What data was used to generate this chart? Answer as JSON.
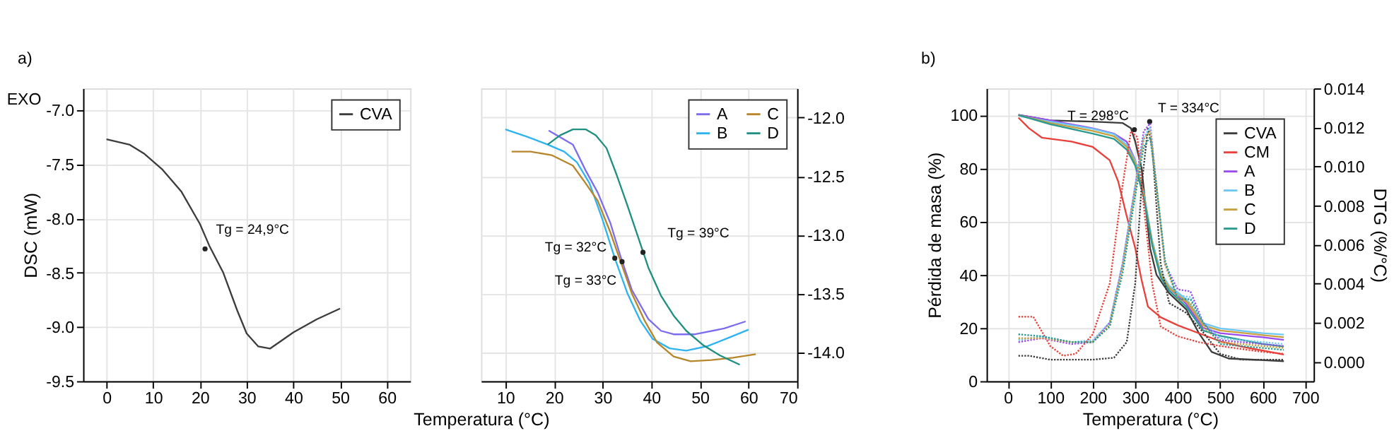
{
  "chart_data": [
    {
      "type": "line",
      "ylabel": "DSC (mW)",
      "xlim": [
        -5,
        65
      ],
      "ylim": [
        -9.5,
        -6.8
      ],
      "xticks": [
        0,
        10,
        20,
        30,
        40,
        50,
        60
      ],
      "yticks": [
        {
          "value": -9.5,
          "label": "-9.5"
        },
        {
          "value": -9.0,
          "label": "-9.0"
        },
        {
          "value": -8.5,
          "label": "-8.5"
        },
        {
          "value": -8.0,
          "label": "-8.0"
        },
        {
          "value": -7.5,
          "label": "-7.5"
        },
        {
          "value": -7.0,
          "label": "-7.0"
        }
      ],
      "grid": true,
      "legend": "top right",
      "line_style": "solid",
      "annotations": [
        "a)",
        "EXO",
        {
          "text": "Tg = 24,9°C",
          "x": 21.1,
          "y": -8.28
        }
      ],
      "series": [
        {
          "name": "CVA",
          "color": "#3c3c3c",
          "x": [
            0,
            5,
            8,
            12,
            16,
            20,
            22,
            25,
            28,
            30,
            32.5,
            35,
            40,
            45,
            50
          ],
          "values": [
            -7.27,
            -7.32,
            -7.4,
            -7.55,
            -7.75,
            -8.05,
            -8.25,
            -8.5,
            -8.85,
            -9.06,
            -9.18,
            -9.2,
            -9.05,
            -8.93,
            -8.83
          ]
        }
      ]
    },
    {
      "type": "line",
      "xlabel": "Temperatura (°C)",
      "xlim": [
        5,
        70
      ],
      "ylim": [
        -14.25,
        -11.75
      ],
      "xticks": [
        10,
        20,
        30,
        40,
        50,
        60,
        70
      ],
      "yticks": [
        {
          "value": -14.0,
          "label": "-14.0"
        },
        {
          "value": -13.5,
          "label": "-13.5"
        },
        {
          "value": -13.0,
          "label": "-13.0"
        },
        {
          "value": -12.5,
          "label": "-12.5"
        },
        {
          "value": -12.0,
          "label": "-12.0"
        }
      ],
      "grid": true,
      "legend": "top right",
      "line_style": "solid",
      "annotations": [
        {
          "text": "Tg = 32°C",
          "x": 32.5,
          "y": -13.2
        },
        {
          "text": "Tg = 33°C",
          "x": 34,
          "y": -13.23
        },
        {
          "text": "Tg = 39°C",
          "x": 38.3,
          "y": -13.15
        }
      ],
      "series": [
        {
          "name": "A",
          "color": "#7b6cf0",
          "x": [
            18.9,
            23.9,
            26.5,
            29,
            31.6,
            33.8,
            36,
            39.4,
            42,
            44.6,
            49,
            55,
            59.4
          ],
          "values": [
            -12.11,
            -12.23,
            -12.45,
            -12.64,
            -12.9,
            -13.2,
            -13.47,
            -13.72,
            -13.82,
            -13.85,
            -13.85,
            -13.8,
            -13.74
          ]
        },
        {
          "name": "B",
          "color": "#2db4f0",
          "x": [
            10,
            14.3,
            18.7,
            22.1,
            24.7,
            27.3,
            29.9,
            32.5,
            35.1,
            37.7,
            40.3,
            43.8,
            47.2,
            51.6,
            55.9,
            60
          ],
          "values": [
            -12.1,
            -12.16,
            -12.23,
            -12.29,
            -12.38,
            -12.56,
            -12.86,
            -13.2,
            -13.5,
            -13.73,
            -13.89,
            -13.97,
            -13.99,
            -13.95,
            -13.88,
            -13.81
          ]
        },
        {
          "name": "C",
          "color": "#b8862a",
          "x": [
            11.3,
            15.2,
            19.5,
            23.9,
            26.5,
            29,
            31.6,
            33.8,
            36,
            38.6,
            41.2,
            44.6,
            48.1,
            52.4,
            56.8,
            61.5
          ],
          "values": [
            -12.29,
            -12.29,
            -12.32,
            -12.41,
            -12.56,
            -12.71,
            -12.98,
            -13.24,
            -13.5,
            -13.73,
            -13.92,
            -14.04,
            -14.08,
            -14.07,
            -14.05,
            -14.02
          ]
        },
        {
          "name": "D",
          "color": "#1f8f80",
          "x": [
            18.7,
            21.3,
            23.9,
            26.5,
            28.6,
            30.8,
            32.9,
            35.1,
            37.3,
            39.4,
            42,
            44.6,
            47.2,
            50.6,
            54.1,
            58.2
          ],
          "values": [
            -12.23,
            -12.15,
            -12.1,
            -12.1,
            -12.15,
            -12.26,
            -12.49,
            -12.75,
            -13.02,
            -13.28,
            -13.52,
            -13.69,
            -13.82,
            -13.94,
            -14.03,
            -14.11
          ]
        }
      ]
    },
    {
      "type": "line",
      "xlabel": "Temperatura (°C)",
      "ylabel": "Pérdida de masa (%)",
      "y2label": "DTG (%/°C)",
      "xlim": [
        -50,
        720
      ],
      "ylim": [
        0,
        110
      ],
      "y2lim": [
        -0.001,
        0.014
      ],
      "xticks": [
        0,
        100,
        200,
        300,
        400,
        500,
        600,
        700
      ],
      "yticks": [
        0,
        20,
        40,
        60,
        80,
        100
      ],
      "y2ticks": [
        {
          "value": 0,
          "label": "0.000"
        },
        {
          "value": 0.002,
          "label": "0.002"
        },
        {
          "value": 0.004,
          "label": "0.004"
        },
        {
          "value": 0.006,
          "label": "0.006"
        },
        {
          "value": 0.008,
          "label": "0.008"
        },
        {
          "value": 0.01,
          "label": "0.010"
        },
        {
          "value": 0.012,
          "label": "0.012"
        },
        {
          "value": 0.014,
          "label": "0.014"
        }
      ],
      "grid": true,
      "legend": "top right",
      "annotations": [
        "b)",
        {
          "text": "T = 298°C",
          "x": 298,
          "y": 94.5
        },
        {
          "text": "T = 334°C",
          "x": 334,
          "y": 97.5
        }
      ],
      "series": [
        {
          "name": "CVA",
          "color": "#3c3c3c",
          "line_style": "solid",
          "x": [
            25,
            100,
            200,
            270,
            290,
            300,
            315,
            325,
            335,
            350,
            380,
            420,
            450,
            480,
            520,
            650
          ],
          "values": [
            100,
            98,
            97.5,
            97,
            95,
            90,
            80,
            65,
            50,
            40,
            33,
            27,
            18,
            11,
            8.5,
            7.5
          ]
        },
        {
          "name": "CM",
          "color": "#e8403a",
          "line_style": "solid",
          "x": [
            25,
            50,
            80,
            150,
            200,
            240,
            260,
            280,
            300,
            315,
            330,
            360,
            400,
            450,
            500,
            550,
            600,
            650
          ],
          "values": [
            99,
            95,
            91.5,
            90,
            88,
            83,
            75,
            62,
            50,
            38,
            28,
            24,
            21,
            18,
            15,
            13,
            11.5,
            10
          ]
        },
        {
          "name": "A",
          "color": "#9a4cf0",
          "line_style": "solid",
          "x": [
            25,
            100,
            200,
            250,
            280,
            300,
            320,
            340,
            360,
            380,
            420,
            460,
            500,
            600,
            650
          ],
          "values": [
            100,
            98,
            95,
            93,
            90,
            83,
            70,
            52,
            40,
            35,
            29,
            20,
            18,
            16.5,
            15.5
          ]
        },
        {
          "name": "B",
          "color": "#6cc8f5",
          "line_style": "solid",
          "x": [
            30,
            100,
            200,
            250,
            280,
            300,
            320,
            340,
            360,
            380,
            420,
            460,
            500,
            600,
            650
          ],
          "values": [
            99.5,
            97.5,
            94.8,
            92.8,
            88.8,
            82.8,
            70.8,
            52.8,
            40.8,
            35.8,
            30.8,
            21.8,
            19.8,
            18,
            17.5
          ]
        },
        {
          "name": "C",
          "color": "#c8a040",
          "line_style": "solid",
          "x": [
            25,
            100,
            200,
            250,
            280,
            300,
            320,
            340,
            360,
            380,
            420,
            460,
            500,
            600,
            650
          ],
          "values": [
            100,
            97,
            94,
            92,
            88,
            82,
            70,
            52,
            40,
            35,
            30,
            21,
            19,
            17.3,
            16.5
          ]
        },
        {
          "name": "D",
          "color": "#2a9a90",
          "line_style": "solid",
          "x": [
            25,
            100,
            200,
            250,
            280,
            300,
            320,
            340,
            360,
            380,
            420,
            460,
            500,
            600,
            650
          ],
          "values": [
            100,
            96.5,
            93,
            91,
            87,
            81,
            69,
            51,
            39,
            34,
            28,
            19,
            17,
            14,
            13
          ]
        },
        {
          "color": "#3c3c3c",
          "line_style": "dotted",
          "axis": "y2",
          "x": [
            25,
            50,
            100,
            200,
            250,
            280,
            300,
            315,
            330,
            340,
            360,
            380,
            420,
            460,
            500,
            550,
            650
          ],
          "values": [
            0.0003,
            0.0003,
            0.0001,
            0.0001,
            0.0002,
            0.001,
            0.004,
            0.009,
            0.012,
            0.011,
            0.005,
            0.003,
            0.0025,
            0.0015,
            0.0004,
            0.0001,
            0.0001
          ]
        },
        {
          "color": "#e8403a",
          "line_style": "dotted",
          "axis": "y2",
          "x": [
            25,
            60,
            100,
            130,
            160,
            200,
            240,
            270,
            290,
            305,
            320,
            340,
            360,
            400,
            450,
            500,
            600,
            650
          ],
          "values": [
            0.0023,
            0.0023,
            0.0008,
            0.0003,
            0.0004,
            0.0014,
            0.004,
            0.009,
            0.0118,
            0.0115,
            0.008,
            0.004,
            0.0018,
            0.0013,
            0.001,
            0.0008,
            0.0005,
            0.0004
          ]
        },
        {
          "color": "#9a4cf0",
          "line_style": "dotted",
          "axis": "y2",
          "x": [
            25,
            80,
            150,
            200,
            240,
            270,
            300,
            320,
            335,
            350,
            370,
            400,
            430,
            460,
            500,
            600,
            650
          ],
          "values": [
            0.001,
            0.0012,
            0.0009,
            0.001,
            0.002,
            0.005,
            0.009,
            0.0118,
            0.0122,
            0.009,
            0.005,
            0.0037,
            0.0036,
            0.002,
            0.0011,
            0.0009,
            0.0008
          ]
        },
        {
          "color": "#6cc8f5",
          "line_style": "dotted",
          "axis": "y2",
          "x": [
            25,
            80,
            150,
            200,
            240,
            270,
            300,
            320,
            335,
            350,
            370,
            400,
            430,
            460,
            500,
            600,
            650
          ],
          "values": [
            0.0011,
            0.0013,
            0.001,
            0.0011,
            0.002,
            0.005,
            0.009,
            0.0115,
            0.012,
            0.009,
            0.005,
            0.0034,
            0.0033,
            0.002,
            0.0012,
            0.001,
            0.0009
          ]
        },
        {
          "color": "#c8a040",
          "line_style": "dotted",
          "axis": "y2",
          "x": [
            25,
            80,
            150,
            200,
            240,
            270,
            300,
            320,
            335,
            350,
            370,
            400,
            430,
            460,
            500,
            600,
            650
          ],
          "values": [
            0.0012,
            0.0012,
            0.001,
            0.001,
            0.0019,
            0.0048,
            0.0088,
            0.0114,
            0.0118,
            0.009,
            0.005,
            0.0032,
            0.003,
            0.0018,
            0.001,
            0.0008,
            0.0007
          ]
        },
        {
          "color": "#2a9a90",
          "line_style": "dotted",
          "axis": "y2",
          "x": [
            25,
            80,
            150,
            200,
            240,
            270,
            300,
            320,
            335,
            350,
            370,
            400,
            430,
            460,
            500,
            600,
            650
          ],
          "values": [
            0.0014,
            0.0013,
            0.001,
            0.001,
            0.0018,
            0.0045,
            0.0085,
            0.011,
            0.0115,
            0.009,
            0.0052,
            0.0032,
            0.0032,
            0.002,
            0.0009,
            0.0007,
            0.0006
          ]
        }
      ]
    }
  ]
}
